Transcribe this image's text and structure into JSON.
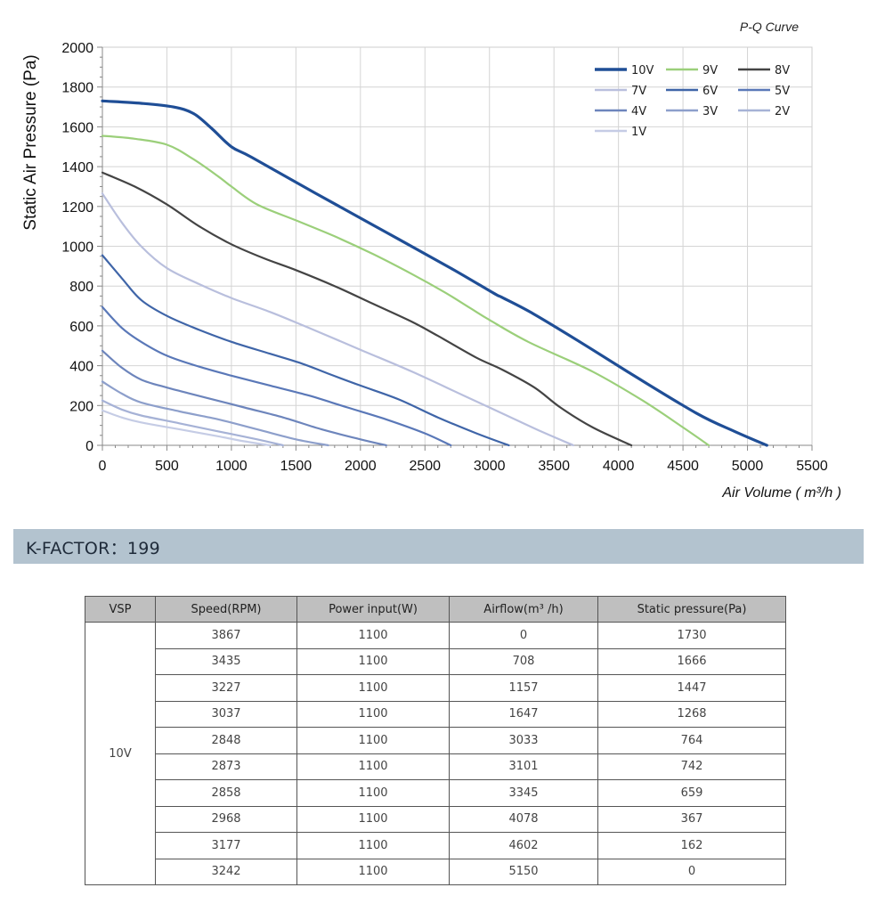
{
  "chart_data": {
    "type": "line",
    "title": "P-Q Curve",
    "xlabel": "Air Volume ( m³/h )",
    "ylabel": "Static Air Pressure  (Pa)",
    "xlim": [
      0,
      5500
    ],
    "ylim": [
      0,
      2000
    ],
    "xticks": [
      0,
      500,
      1000,
      1500,
      2000,
      2500,
      3000,
      3500,
      4000,
      4500,
      5000,
      5500
    ],
    "yticks": [
      0,
      200,
      400,
      600,
      800,
      1000,
      1200,
      1400,
      1600,
      1800,
      2000
    ],
    "grid": true,
    "legend_position": "top-right",
    "series": [
      {
        "name": "10V",
        "color": "#1f4e96",
        "width": 3.2,
        "points": [
          [
            0,
            1730
          ],
          [
            300,
            1718
          ],
          [
            550,
            1700
          ],
          [
            708,
            1666
          ],
          [
            850,
            1590
          ],
          [
            1000,
            1500
          ],
          [
            1157,
            1447
          ],
          [
            1647,
            1268
          ],
          [
            2200,
            1070
          ],
          [
            2700,
            890
          ],
          [
            3033,
            764
          ],
          [
            3101,
            742
          ],
          [
            3345,
            659
          ],
          [
            3700,
            520
          ],
          [
            4078,
            367
          ],
          [
            4602,
            162
          ],
          [
            4900,
            70
          ],
          [
            5150,
            0
          ]
        ]
      },
      {
        "name": "9V",
        "color": "#9bcf7a",
        "width": 2.2,
        "points": [
          [
            0,
            1555
          ],
          [
            250,
            1540
          ],
          [
            500,
            1510
          ],
          [
            700,
            1440
          ],
          [
            900,
            1350
          ],
          [
            1000,
            1300
          ],
          [
            1200,
            1210
          ],
          [
            1500,
            1130
          ],
          [
            1800,
            1050
          ],
          [
            2100,
            960
          ],
          [
            2400,
            860
          ],
          [
            2650,
            770
          ],
          [
            2850,
            690
          ],
          [
            3000,
            630
          ],
          [
            3300,
            520
          ],
          [
            3800,
            370
          ],
          [
            4200,
            220
          ],
          [
            4500,
            90
          ],
          [
            4700,
            0
          ]
        ]
      },
      {
        "name": "8V",
        "color": "#444444",
        "width": 2.2,
        "points": [
          [
            0,
            1370
          ],
          [
            250,
            1300
          ],
          [
            500,
            1210
          ],
          [
            750,
            1100
          ],
          [
            1000,
            1010
          ],
          [
            1250,
            940
          ],
          [
            1500,
            880
          ],
          [
            1800,
            800
          ],
          [
            2100,
            710
          ],
          [
            2400,
            620
          ],
          [
            2600,
            550
          ],
          [
            2900,
            440
          ],
          [
            3100,
            380
          ],
          [
            3350,
            290
          ],
          [
            3550,
            190
          ],
          [
            3800,
            90
          ],
          [
            4100,
            0
          ]
        ]
      },
      {
        "name": "7V",
        "color": "#b9bfdd",
        "width": 2.2,
        "points": [
          [
            0,
            1265
          ],
          [
            150,
            1120
          ],
          [
            300,
            1000
          ],
          [
            500,
            890
          ],
          [
            750,
            810
          ],
          [
            1000,
            740
          ],
          [
            1300,
            670
          ],
          [
            1600,
            590
          ],
          [
            2000,
            480
          ],
          [
            2400,
            370
          ],
          [
            2800,
            250
          ],
          [
            3100,
            160
          ],
          [
            3400,
            70
          ],
          [
            3650,
            0
          ]
        ]
      },
      {
        "name": "6V",
        "color": "#3f65a8",
        "width": 2.2,
        "points": [
          [
            0,
            955
          ],
          [
            150,
            840
          ],
          [
            300,
            730
          ],
          [
            500,
            650
          ],
          [
            750,
            580
          ],
          [
            1000,
            520
          ],
          [
            1300,
            460
          ],
          [
            1550,
            410
          ],
          [
            1750,
            360
          ],
          [
            2000,
            300
          ],
          [
            2300,
            230
          ],
          [
            2600,
            140
          ],
          [
            2900,
            60
          ],
          [
            3150,
            0
          ]
        ]
      },
      {
        "name": "5V",
        "color": "#5a78b8",
        "width": 2.2,
        "points": [
          [
            0,
            695
          ],
          [
            150,
            590
          ],
          [
            300,
            520
          ],
          [
            500,
            450
          ],
          [
            750,
            395
          ],
          [
            1000,
            350
          ],
          [
            1300,
            300
          ],
          [
            1600,
            250
          ],
          [
            1900,
            190
          ],
          [
            2200,
            130
          ],
          [
            2500,
            60
          ],
          [
            2700,
            0
          ]
        ]
      },
      {
        "name": "4V",
        "color": "#6d85bc",
        "width": 2.2,
        "points": [
          [
            0,
            475
          ],
          [
            150,
            390
          ],
          [
            300,
            330
          ],
          [
            500,
            290
          ],
          [
            800,
            240
          ],
          [
            1100,
            190
          ],
          [
            1400,
            140
          ],
          [
            1700,
            80
          ],
          [
            2000,
            30
          ],
          [
            2200,
            0
          ]
        ]
      },
      {
        "name": "3V",
        "color": "#8d9fcb",
        "width": 2.2,
        "points": [
          [
            0,
            320
          ],
          [
            150,
            260
          ],
          [
            300,
            215
          ],
          [
            600,
            170
          ],
          [
            900,
            130
          ],
          [
            1200,
            80
          ],
          [
            1500,
            30
          ],
          [
            1750,
            0
          ]
        ]
      },
      {
        "name": "2V",
        "color": "#a6b2d6",
        "width": 2.2,
        "points": [
          [
            0,
            225
          ],
          [
            150,
            180
          ],
          [
            300,
            150
          ],
          [
            600,
            110
          ],
          [
            900,
            70
          ],
          [
            1200,
            30
          ],
          [
            1400,
            0
          ]
        ]
      },
      {
        "name": "1V",
        "color": "#c5cce5",
        "width": 2.2,
        "points": [
          [
            0,
            175
          ],
          [
            150,
            140
          ],
          [
            300,
            115
          ],
          [
            600,
            80
          ],
          [
            900,
            45
          ],
          [
            1100,
            20
          ],
          [
            1300,
            0
          ]
        ]
      }
    ]
  },
  "kfactor": {
    "label": "K-FACTOR：199"
  },
  "table": {
    "headers": [
      "VSP",
      "Speed(RPM)",
      "Power input(W)",
      "Airflow(m³ /h)",
      "Static pressure(Pa)"
    ],
    "vsp": "10V",
    "rows": [
      [
        "3867",
        "1100",
        "0",
        "1730"
      ],
      [
        "3435",
        "1100",
        "708",
        "1666"
      ],
      [
        "3227",
        "1100",
        "1157",
        "1447"
      ],
      [
        "3037",
        "1100",
        "1647",
        "1268"
      ],
      [
        "2848",
        "1100",
        "3033",
        "764"
      ],
      [
        "2873",
        "1100",
        "3101",
        "742"
      ],
      [
        "2858",
        "1100",
        "3345",
        "659"
      ],
      [
        "2968",
        "1100",
        "4078",
        "367"
      ],
      [
        "3177",
        "1100",
        "4602",
        "162"
      ],
      [
        "3242",
        "1100",
        "5150",
        "0"
      ]
    ]
  }
}
